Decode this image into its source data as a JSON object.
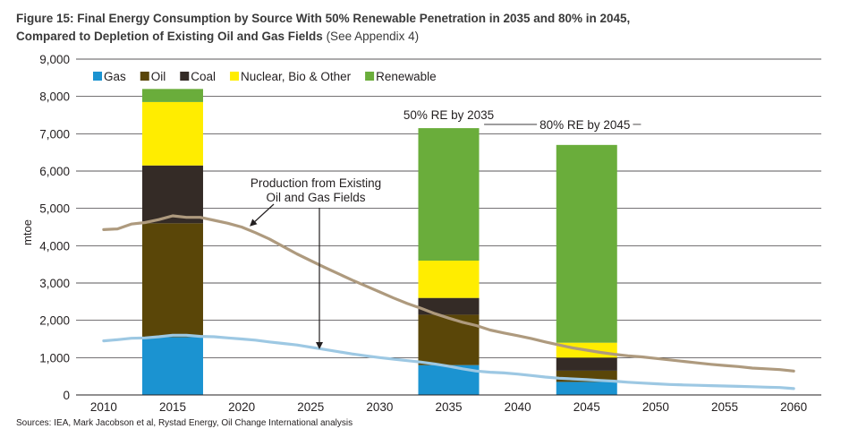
{
  "header": {
    "title_line1": "Figure 15: Final Energy Consumption by Source With 50% Renewable Penetration in 2035 and 80% in 2045,",
    "title_line2": "Compared to Depletion of Existing Oil and Gas Fields",
    "title_note": "(See Appendix 4)"
  },
  "footer": {
    "source": "Sources: IEA, Mark Jacobson et al, Rystad Energy, Oil Change International analysis"
  },
  "chart_data": {
    "type": "bar",
    "ylabel": "mtoe",
    "ylim": [
      0,
      9000
    ],
    "yticks": [
      "0",
      "1,000",
      "2,000",
      "3,000",
      "4,000",
      "5,000",
      "6,000",
      "7,000",
      "8,000",
      "9,000"
    ],
    "xlim": [
      2008,
      2062
    ],
    "xticks": [
      "2010",
      "2015",
      "2020",
      "2025",
      "2030",
      "2035",
      "2040",
      "2045",
      "2050",
      "2055",
      "2060"
    ],
    "grid": true,
    "legend_position": "top-left",
    "series": [
      {
        "name": "Gas",
        "color": "#1b93d1"
      },
      {
        "name": "Oil",
        "color": "#5a4608"
      },
      {
        "name": "Coal",
        "color": "#342b26"
      },
      {
        "name": "Nuclear, Bio & Other",
        "color": "#ffed00"
      },
      {
        "name": "Renewable",
        "color": "#6aad3b"
      }
    ],
    "bars": [
      {
        "x": 2015,
        "values": [
          1550,
          3050,
          1550,
          1700,
          350
        ]
      },
      {
        "x": 2035,
        "values": [
          800,
          1350,
          450,
          1000,
          3550
        ],
        "label": "50% RE by 2035"
      },
      {
        "x": 2045,
        "values": [
          350,
          300,
          350,
          400,
          5300
        ],
        "label": "80% RE by 2045"
      }
    ],
    "lines": [
      {
        "name": "Oil",
        "color": "#ae9a7e",
        "x": [
          2010,
          2011,
          2012,
          2013,
          2014,
          2015,
          2016,
          2017,
          2018,
          2019,
          2020,
          2021,
          2022,
          2023,
          2024,
          2025,
          2026,
          2027,
          2028,
          2029,
          2030,
          2031,
          2032,
          2033,
          2034,
          2035,
          2036,
          2037,
          2038,
          2039,
          2040,
          2041,
          2042,
          2043,
          2044,
          2045,
          2046,
          2047,
          2048,
          2049,
          2050,
          2051,
          2052,
          2053,
          2054,
          2055,
          2056,
          2057,
          2058,
          2059,
          2060
        ],
        "y": [
          4430,
          4450,
          4580,
          4620,
          4700,
          4800,
          4760,
          4760,
          4680,
          4600,
          4500,
          4350,
          4180,
          3980,
          3780,
          3600,
          3420,
          3250,
          3080,
          2920,
          2760,
          2600,
          2450,
          2320,
          2180,
          2060,
          1950,
          1860,
          1740,
          1660,
          1590,
          1510,
          1420,
          1340,
          1260,
          1200,
          1140,
          1090,
          1050,
          1020,
          980,
          940,
          900,
          860,
          820,
          790,
          760,
          720,
          700,
          680,
          640
        ]
      },
      {
        "name": "Gas",
        "color": "#9dc8e3",
        "x": [
          2010,
          2011,
          2012,
          2013,
          2014,
          2015,
          2016,
          2017,
          2018,
          2019,
          2020,
          2021,
          2022,
          2023,
          2024,
          2025,
          2026,
          2027,
          2028,
          2029,
          2030,
          2031,
          2032,
          2033,
          2034,
          2035,
          2036,
          2037,
          2038,
          2039,
          2040,
          2041,
          2042,
          2043,
          2044,
          2045,
          2046,
          2047,
          2048,
          2049,
          2050,
          2051,
          2052,
          2053,
          2054,
          2055,
          2056,
          2057,
          2058,
          2059,
          2060
        ],
        "y": [
          1450,
          1480,
          1520,
          1530,
          1560,
          1600,
          1600,
          1570,
          1560,
          1530,
          1500,
          1470,
          1420,
          1380,
          1340,
          1280,
          1220,
          1160,
          1100,
          1050,
          1000,
          960,
          920,
          880,
          830,
          770,
          700,
          640,
          610,
          590,
          560,
          520,
          480,
          450,
          430,
          410,
          390,
          370,
          340,
          320,
          300,
          280,
          270,
          260,
          250,
          240,
          230,
          220,
          210,
          200,
          170
        ]
      }
    ],
    "annotations": [
      {
        "text_lines": [
          "Production from Existing",
          "Oil and Gas Fields"
        ]
      }
    ]
  }
}
